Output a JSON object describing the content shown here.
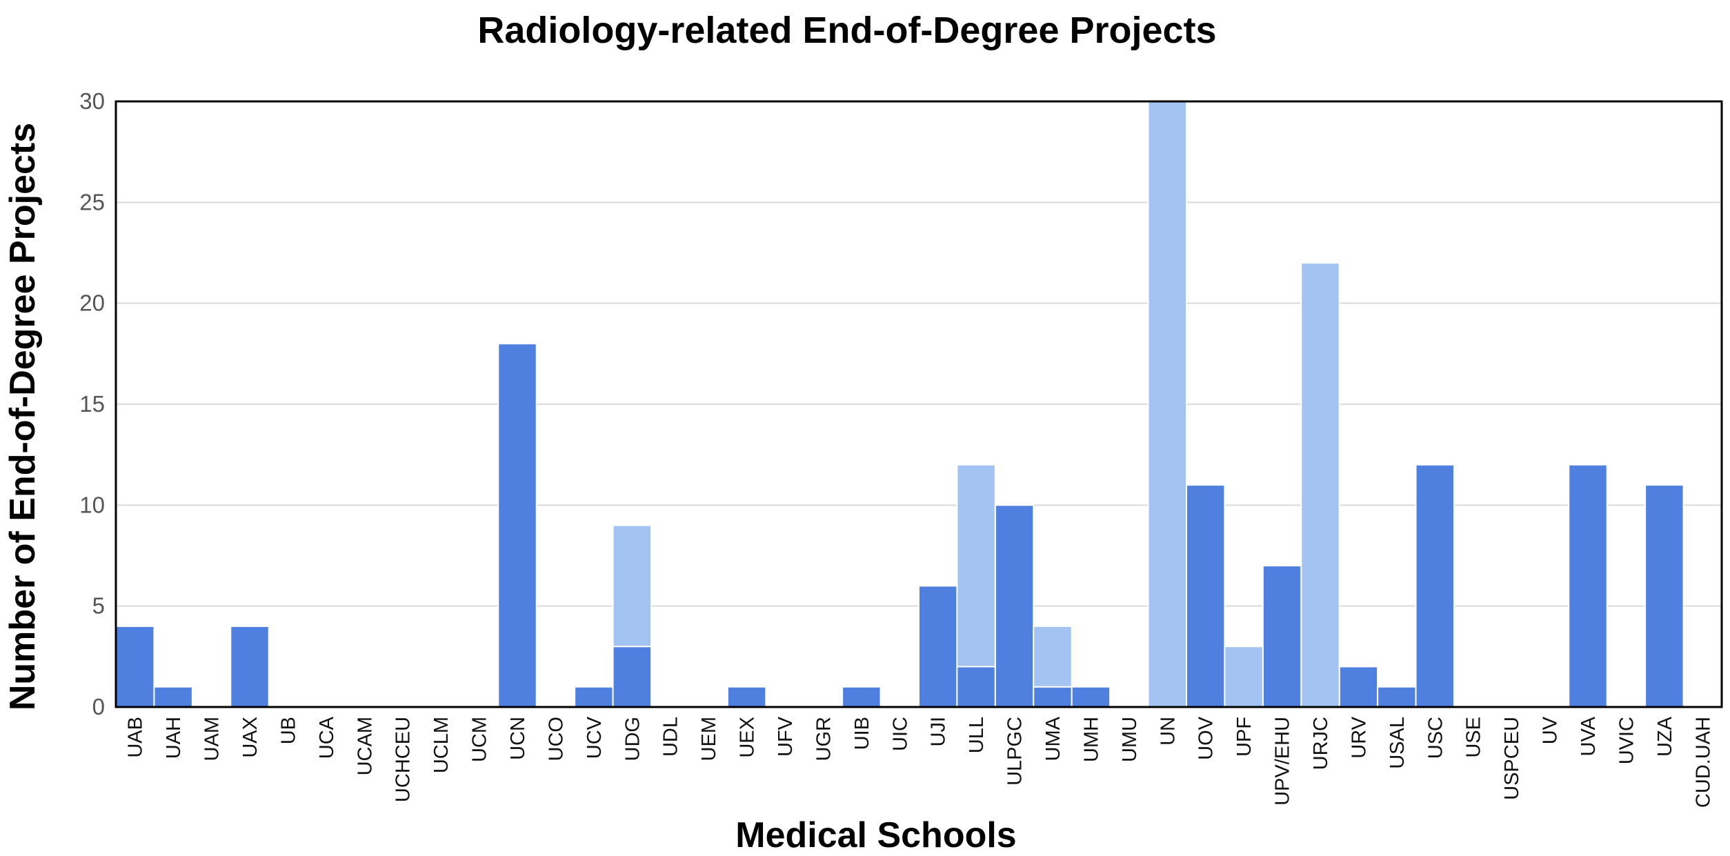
{
  "chart_data": {
    "type": "bar",
    "title": "Radiology-related End-of-Degree Projects",
    "xlabel": "Medical Schools",
    "ylabel": "Number of End-of-Degree Projects",
    "ylim": [
      0,
      30
    ],
    "yticks": [
      0,
      5,
      10,
      15,
      20,
      25,
      30
    ],
    "grid": true,
    "legend": "none",
    "stacked": true,
    "categories": [
      "UAB",
      "UAH",
      "UAM",
      "UAX",
      "UB",
      "UCA",
      "UCAM",
      "UCHCEU",
      "UCLM",
      "UCM",
      "UCN",
      "UCO",
      "UCV",
      "UDG",
      "UDL",
      "UEM",
      "UEX",
      "UFV",
      "UGR",
      "UIB",
      "UIC",
      "UJI",
      "ULL",
      "ULPGC",
      "UMA",
      "UMH",
      "UMU",
      "UN",
      "UOV",
      "UPF",
      "UPV/EHU",
      "URJC",
      "URV",
      "USAL",
      "USC",
      "USE",
      "USPCEU",
      "UV",
      "UVA",
      "UVIC",
      "UZA",
      "CUD.UAH"
    ],
    "series": [
      {
        "color": "#4f7fdf",
        "values": [
          4,
          1,
          0,
          4,
          0,
          0,
          0,
          0,
          0,
          0,
          18,
          0,
          1,
          3,
          0,
          0,
          1,
          0,
          0,
          1,
          0,
          6,
          2,
          10,
          1,
          1,
          0,
          0,
          11,
          0,
          7,
          0,
          2,
          1,
          12,
          0,
          0,
          0,
          12,
          0,
          11,
          0
        ]
      },
      {
        "color": "#a3c4f3",
        "values": [
          0,
          0,
          0,
          0,
          0,
          0,
          0,
          0,
          0,
          0,
          0,
          0,
          0,
          6,
          0,
          0,
          0,
          0,
          0,
          0,
          0,
          0,
          10,
          0,
          3,
          0,
          0,
          30,
          0,
          3,
          0,
          22,
          0,
          0,
          0,
          0,
          0,
          0,
          0,
          0,
          0,
          0
        ]
      }
    ]
  }
}
